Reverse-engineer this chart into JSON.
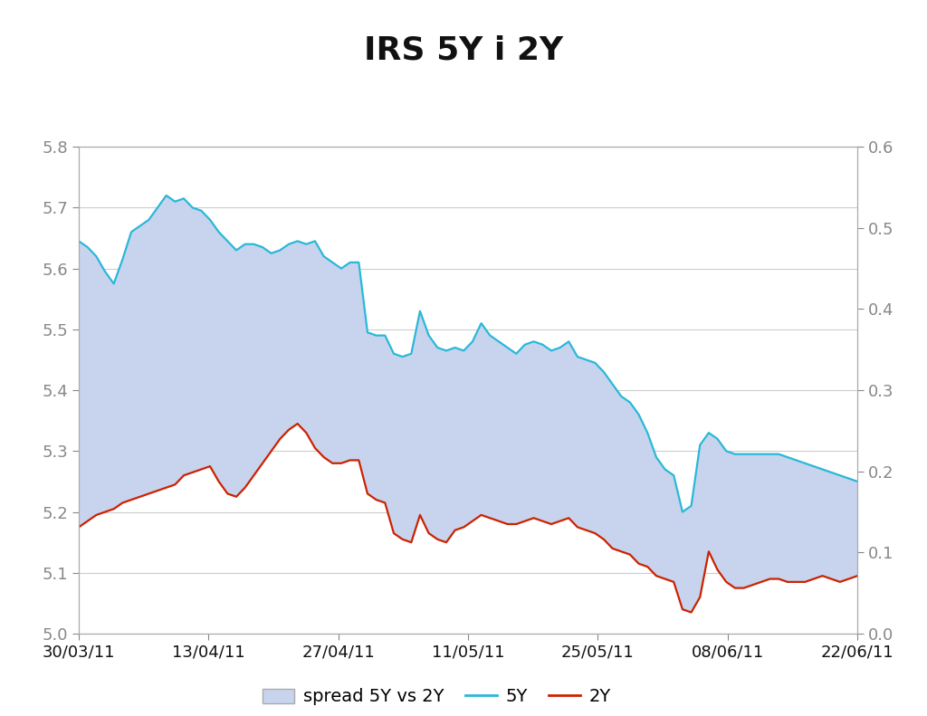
{
  "title": "IRS 5Y i 2Y",
  "title_fontsize": 26,
  "title_fontweight": "bold",
  "background_color": "#ffffff",
  "left_ylim": [
    5.0,
    5.8
  ],
  "right_ylim": [
    0.0,
    0.6
  ],
  "left_yticks": [
    5.0,
    5.1,
    5.2,
    5.3,
    5.4,
    5.5,
    5.6,
    5.7,
    5.8
  ],
  "right_yticks": [
    0.0,
    0.1,
    0.2,
    0.3,
    0.4,
    0.5,
    0.6
  ],
  "xtick_labels": [
    "30/03/11",
    "13/04/11",
    "27/04/11",
    "11/05/11",
    "25/05/11",
    "08/06/11",
    "22/06/11"
  ],
  "color_5Y": "#29b8d8",
  "color_2Y": "#cc2200",
  "color_spread_fill": "#c8d4ee",
  "color_spread_edge": "#9baad6",
  "grid_color": "#cccccc",
  "legend_labels": [
    "spread 5Y vs 2Y",
    "5Y",
    "2Y"
  ],
  "x": [
    0,
    1,
    2,
    3,
    4,
    5,
    6,
    7,
    8,
    9,
    10,
    11,
    12,
    13,
    14,
    15,
    16,
    17,
    18,
    19,
    20,
    21,
    22,
    23,
    24,
    25,
    26,
    27,
    28,
    29,
    30,
    31,
    32,
    33,
    34,
    35,
    36,
    37,
    38,
    39,
    40,
    41,
    42,
    43,
    44,
    45,
    46,
    47,
    48,
    49,
    50,
    51,
    52,
    53,
    54,
    55,
    56,
    57,
    58,
    59,
    60,
    61,
    62,
    63,
    64,
    65,
    66,
    67,
    68,
    69,
    70,
    71,
    72,
    73,
    74,
    75,
    76,
    77,
    78,
    79,
    80,
    81,
    82,
    83,
    84,
    85,
    86,
    87,
    88,
    89
  ],
  "y5Y": [
    5.645,
    5.635,
    5.62,
    5.595,
    5.575,
    5.615,
    5.66,
    5.67,
    5.68,
    5.7,
    5.72,
    5.71,
    5.715,
    5.7,
    5.695,
    5.68,
    5.66,
    5.645,
    5.63,
    5.64,
    5.64,
    5.635,
    5.625,
    5.63,
    5.64,
    5.645,
    5.64,
    5.645,
    5.62,
    5.61,
    5.6,
    5.61,
    5.61,
    5.495,
    5.49,
    5.49,
    5.46,
    5.455,
    5.46,
    5.53,
    5.49,
    5.47,
    5.465,
    5.47,
    5.465,
    5.48,
    5.51,
    5.49,
    5.48,
    5.47,
    5.46,
    5.475,
    5.48,
    5.475,
    5.465,
    5.47,
    5.48,
    5.455,
    5.45,
    5.445,
    5.43,
    5.41,
    5.39,
    5.38,
    5.36,
    5.33,
    5.29,
    5.27,
    5.26,
    5.2,
    5.21,
    5.31,
    5.33,
    5.32,
    5.3,
    5.295,
    5.295,
    5.295,
    5.295,
    5.295,
    5.295,
    5.29,
    5.285,
    5.28,
    5.275,
    5.27,
    5.265,
    5.26,
    5.255,
    5.25
  ],
  "y2Y": [
    5.175,
    5.185,
    5.195,
    5.2,
    5.205,
    5.215,
    5.22,
    5.225,
    5.23,
    5.235,
    5.24,
    5.245,
    5.26,
    5.265,
    5.27,
    5.275,
    5.25,
    5.23,
    5.225,
    5.24,
    5.26,
    5.28,
    5.3,
    5.32,
    5.335,
    5.345,
    5.33,
    5.305,
    5.29,
    5.28,
    5.28,
    5.285,
    5.285,
    5.23,
    5.22,
    5.215,
    5.165,
    5.155,
    5.15,
    5.195,
    5.165,
    5.155,
    5.15,
    5.17,
    5.175,
    5.185,
    5.195,
    5.19,
    5.185,
    5.18,
    5.18,
    5.185,
    5.19,
    5.185,
    5.18,
    5.185,
    5.19,
    5.175,
    5.17,
    5.165,
    5.155,
    5.14,
    5.135,
    5.13,
    5.115,
    5.11,
    5.095,
    5.09,
    5.085,
    5.04,
    5.035,
    5.06,
    5.135,
    5.105,
    5.085,
    5.075,
    5.075,
    5.08,
    5.085,
    5.09,
    5.09,
    5.085,
    5.085,
    5.085,
    5.09,
    5.095,
    5.09,
    5.085,
    5.09,
    5.095
  ],
  "n_points": 90
}
